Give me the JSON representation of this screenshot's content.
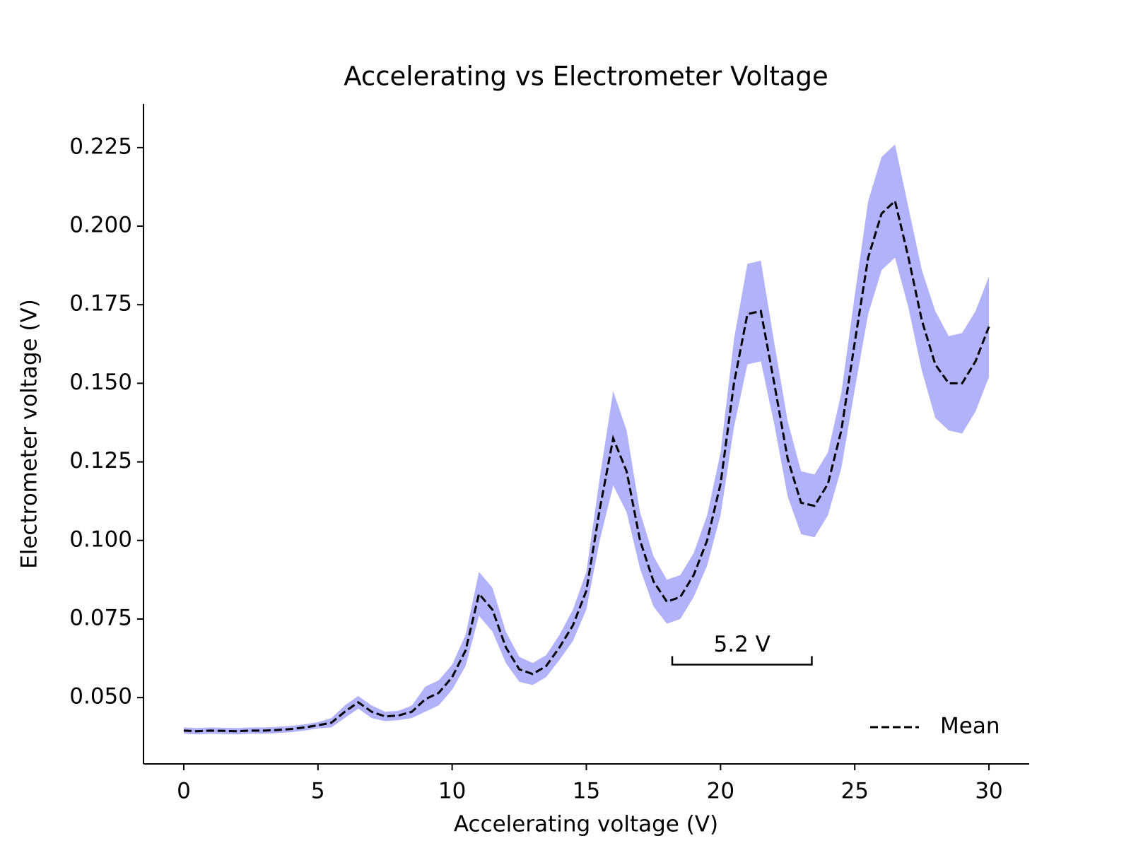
{
  "chart_data": {
    "type": "line",
    "title": "Accelerating vs Electrometer Voltage",
    "xlabel": "Accelerating voltage (V)",
    "ylabel": "Electrometer voltage (V)",
    "x": [
      0,
      0.5,
      1,
      1.5,
      2,
      2.5,
      3,
      3.5,
      4,
      4.5,
      5,
      5.5,
      6,
      6.5,
      7,
      7.5,
      8,
      8.5,
      9,
      9.5,
      10,
      10.5,
      11,
      11.5,
      12,
      12.5,
      13,
      13.5,
      14,
      14.5,
      15,
      15.5,
      16,
      16.5,
      17,
      17.5,
      18,
      18.5,
      19,
      19.5,
      20,
      20.5,
      21,
      21.5,
      22,
      22.5,
      23,
      23.5,
      24,
      24.5,
      25,
      25.5,
      26,
      26.5,
      27,
      27.5,
      28,
      28.5,
      29,
      29.5,
      30
    ],
    "series": [
      {
        "name": "Mean",
        "color": "#000000",
        "values": [
          0.0395,
          0.0393,
          0.0395,
          0.0394,
          0.0393,
          0.0395,
          0.0395,
          0.0397,
          0.04,
          0.0405,
          0.0412,
          0.042,
          0.0455,
          0.0485,
          0.0455,
          0.044,
          0.0443,
          0.0455,
          0.0495,
          0.0515,
          0.0565,
          0.065,
          0.083,
          0.078,
          0.066,
          0.059,
          0.0575,
          0.06,
          0.066,
          0.073,
          0.084,
          0.11,
          0.1325,
          0.122,
          0.1,
          0.087,
          0.0805,
          0.082,
          0.089,
          0.1,
          0.118,
          0.15,
          0.172,
          0.173,
          0.15,
          0.126,
          0.112,
          0.111,
          0.118,
          0.135,
          0.163,
          0.19,
          0.204,
          0.208,
          0.19,
          0.17,
          0.156,
          0.15,
          0.15,
          0.157,
          0.168
        ]
      }
    ],
    "band": {
      "color": "#b2b2fa",
      "lower": [
        0.0385,
        0.0383,
        0.0385,
        0.0384,
        0.0383,
        0.0385,
        0.0385,
        0.0387,
        0.039,
        0.0395,
        0.0402,
        0.0405,
        0.0435,
        0.0465,
        0.0435,
        0.0425,
        0.0428,
        0.0435,
        0.0455,
        0.0475,
        0.0525,
        0.06,
        0.076,
        0.071,
        0.061,
        0.055,
        0.054,
        0.0565,
        0.062,
        0.068,
        0.078,
        0.1,
        0.1175,
        0.109,
        0.091,
        0.079,
        0.0735,
        0.075,
        0.082,
        0.092,
        0.108,
        0.136,
        0.156,
        0.157,
        0.137,
        0.114,
        0.102,
        0.101,
        0.108,
        0.123,
        0.148,
        0.172,
        0.186,
        0.19,
        0.174,
        0.154,
        0.139,
        0.135,
        0.134,
        0.141,
        0.152
      ],
      "upper": [
        0.0405,
        0.0403,
        0.0405,
        0.0404,
        0.0403,
        0.0405,
        0.0405,
        0.0407,
        0.041,
        0.0415,
        0.0422,
        0.0435,
        0.0475,
        0.0505,
        0.0475,
        0.0455,
        0.0458,
        0.0475,
        0.0535,
        0.0555,
        0.0605,
        0.07,
        0.09,
        0.085,
        0.071,
        0.063,
        0.061,
        0.0635,
        0.07,
        0.078,
        0.09,
        0.12,
        0.1475,
        0.135,
        0.109,
        0.095,
        0.0875,
        0.089,
        0.096,
        0.108,
        0.128,
        0.164,
        0.188,
        0.189,
        0.163,
        0.138,
        0.122,
        0.121,
        0.128,
        0.147,
        0.178,
        0.208,
        0.222,
        0.226,
        0.206,
        0.186,
        0.173,
        0.165,
        0.166,
        0.173,
        0.184
      ]
    },
    "annotation": {
      "text": "5.2 V",
      "x": [
        18.2,
        23.4
      ],
      "y": 0.0605
    },
    "xlim": [
      -1.5,
      31.5
    ],
    "ylim": [
      0.0289,
      0.2389
    ],
    "xticks": [
      0,
      5,
      10,
      15,
      20,
      25,
      30
    ],
    "yticks": [
      {
        "value": 0.05,
        "label": "0.050"
      },
      0.075,
      {
        "value": 0.1,
        "label": "0.100"
      },
      0.125,
      {
        "value": 0.15,
        "label": "0.150"
      },
      0.175,
      {
        "value": 0.2,
        "label": "0.200"
      },
      0.225
    ],
    "legend": "lower right",
    "grid": false
  }
}
